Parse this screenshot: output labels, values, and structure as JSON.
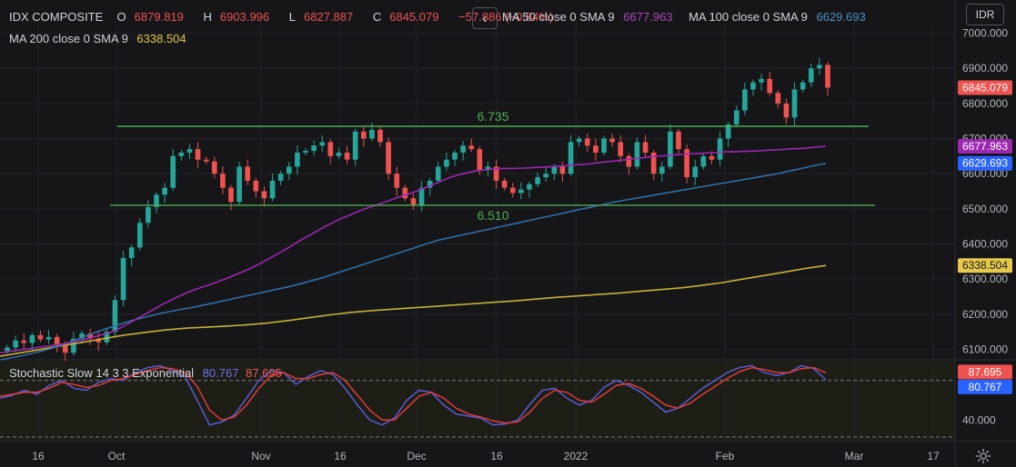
{
  "header": {
    "symbol": "IDX COMPOSITE",
    "open_label": "O",
    "open": "6879.819",
    "high_label": "H",
    "high": "6903.996",
    "low_label": "L",
    "low": "6827.887",
    "close_label": "C",
    "close": "6845.079",
    "change": "−57.886 (−0.84%)",
    "ma50_label": "MA 50 close 0 SMA 9",
    "ma50_value": "6677.963",
    "ma100_label": "MA 100 close 0 SMA 9",
    "ma100_value": "6629.693",
    "ma200_label": "MA 200 close 0 SMA 9",
    "ma200_value": "6338.504",
    "back_glyph": "‹",
    "currency": "IDR"
  },
  "stochastic": {
    "label": "Stochastic Slow 14 3 3 Exponential",
    "k_value": "80.767",
    "d_value": "87.695",
    "axis_label": "40.000"
  },
  "colors": {
    "background": "#161619",
    "up": "#26a69a",
    "down": "#ef5350",
    "ma50": "#9c27b0",
    "ma100": "#2f6fa8",
    "ma200": "#c9b037",
    "levels": "#4caf50",
    "stoch_k": "#5b5bd6",
    "stoch_d": "#e03b3b"
  },
  "chart_data": {
    "type": "candlestick",
    "title": "IDX COMPOSITE",
    "x_ticks": [
      "16",
      "Oct",
      "Nov",
      "16",
      "Dec",
      "16",
      "2022",
      "Feb",
      "Mar",
      "17"
    ],
    "y_ticks": [
      "7000.000",
      "6900.000",
      "6800.000",
      "6700.000",
      "6600.000",
      "6500.000",
      "6400.000",
      "6300.000",
      "6200.000",
      "6100.000"
    ],
    "ylim": [
      6070,
      7030
    ],
    "horizontal_levels": [
      {
        "label": "6.735",
        "value": 6735
      },
      {
        "label": "6.510",
        "value": 6510
      }
    ],
    "price_tags": [
      {
        "label": "6845.079",
        "value": 6845.079,
        "series": "price"
      },
      {
        "label": "6677.963",
        "value": 6677.963,
        "series": "ma50"
      },
      {
        "label": "6629.693",
        "value": 6629.693,
        "series": "ma100"
      },
      {
        "label": "6338.504",
        "value": 6338.504,
        "series": "ma200"
      }
    ],
    "closes": [
      6105,
      6125,
      6118,
      6140,
      6128,
      6135,
      6110,
      6090,
      6130,
      6145,
      6130,
      6120,
      6150,
      6240,
      6360,
      6390,
      6460,
      6505,
      6540,
      6560,
      6650,
      6660,
      6670,
      6640,
      6635,
      6600,
      6560,
      6520,
      6620,
      6580,
      6550,
      6530,
      6580,
      6600,
      6620,
      6660,
      6665,
      6680,
      6690,
      6650,
      6660,
      6640,
      6720,
      6700,
      6725,
      6690,
      6600,
      6560,
      6530,
      6510,
      6560,
      6580,
      6620,
      6640,
      6660,
      6680,
      6670,
      6610,
      6620,
      6580,
      6560,
      6545,
      6555,
      6570,
      6590,
      6600,
      6620,
      6600,
      6690,
      6700,
      6680,
      6660,
      6700,
      6690,
      6650,
      6620,
      6690,
      6660,
      6600,
      6620,
      6720,
      6670,
      6590,
      6620,
      6650,
      6640,
      6700,
      6740,
      6780,
      6840,
      6860,
      6870,
      6830,
      6800,
      6760,
      6840,
      6860,
      6900,
      6910,
      6845.079
    ],
    "ma50": [
      6090,
      6095,
      6100,
      6105,
      6110,
      6115,
      6122,
      6130,
      6140,
      6150,
      6168,
      6188,
      6208,
      6228,
      6246,
      6262,
      6275,
      6287,
      6300,
      6315,
      6330,
      6348,
      6368,
      6388,
      6410,
      6430,
      6450,
      6468,
      6483,
      6498,
      6510,
      6522,
      6535,
      6547,
      6560,
      6575,
      6590,
      6600,
      6608,
      6612,
      6615,
      6615,
      6616,
      6618,
      6620,
      6622,
      6625,
      6628,
      6632,
      6636,
      6640,
      6644,
      6648,
      6651,
      6654,
      6656,
      6658,
      6660,
      6662,
      6663,
      6664,
      6666,
      6668,
      6670,
      6672,
      6675,
      6677.963
    ],
    "ma100": [
      6070,
      6078,
      6088,
      6100,
      6115,
      6132,
      6150,
      6165,
      6180,
      6192,
      6203,
      6212,
      6220,
      6230,
      6240,
      6250,
      6260,
      6270,
      6280,
      6292,
      6305,
      6320,
      6335,
      6350,
      6365,
      6380,
      6395,
      6410,
      6420,
      6430,
      6440,
      6450,
      6460,
      6470,
      6480,
      6490,
      6500,
      6510,
      6520,
      6528,
      6536,
      6544,
      6552,
      6560,
      6568,
      6576,
      6584,
      6592,
      6600,
      6610,
      6620,
      6629.693
    ],
    "ma200": [
      6080,
      6090,
      6100,
      6110,
      6120,
      6130,
      6140,
      6148,
      6155,
      6160,
      6163,
      6166,
      6170,
      6175,
      6182,
      6190,
      6198,
      6205,
      6210,
      6214,
      6218,
      6222,
      6226,
      6230,
      6234,
      6238,
      6243,
      6248,
      6252,
      6256,
      6260,
      6265,
      6270,
      6275,
      6282,
      6290,
      6300,
      6310,
      6320,
      6330,
      6338.504
    ],
    "stoch_k": [
      62,
      65,
      70,
      66,
      75,
      80,
      72,
      70,
      78,
      82,
      80,
      88,
      93,
      95,
      90,
      84,
      60,
      35,
      38,
      45,
      62,
      80,
      90,
      88,
      76,
      84,
      90,
      86,
      72,
      55,
      40,
      35,
      42,
      60,
      70,
      68,
      55,
      46,
      44,
      42,
      35,
      36,
      40,
      56,
      70,
      72,
      62,
      55,
      60,
      73,
      80,
      75,
      68,
      58,
      48,
      52,
      62,
      72,
      80,
      88,
      93,
      95,
      88,
      85,
      88,
      95,
      92,
      80.767
    ],
    "stoch_d": [
      64,
      66,
      68,
      68,
      72,
      78,
      76,
      73,
      75,
      80,
      82,
      86,
      90,
      93,
      92,
      88,
      74,
      50,
      40,
      43,
      55,
      72,
      85,
      88,
      82,
      82,
      86,
      88,
      80,
      65,
      50,
      40,
      40,
      52,
      64,
      68,
      62,
      52,
      46,
      43,
      39,
      37,
      38,
      48,
      62,
      70,
      68,
      60,
      58,
      66,
      75,
      77,
      72,
      64,
      55,
      52,
      57,
      66,
      74,
      82,
      89,
      93,
      91,
      88,
      88,
      92,
      93,
      87.695
    ],
    "stoch_ylim": [
      20,
      100
    ]
  }
}
